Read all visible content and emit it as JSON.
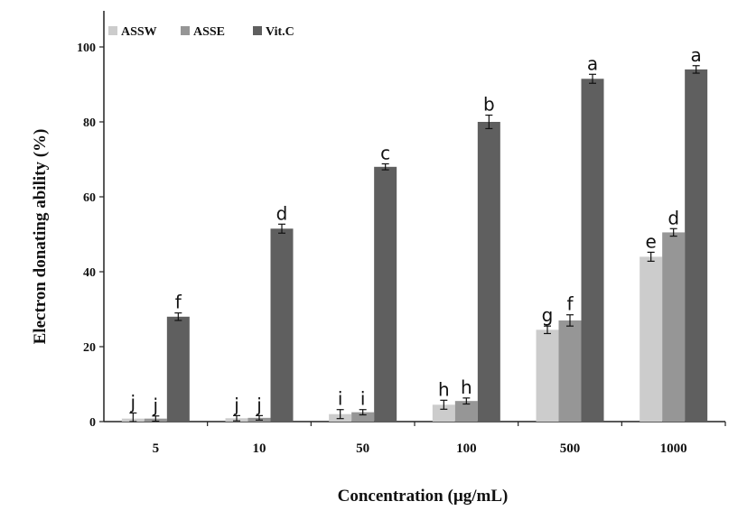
{
  "chart_data": {
    "type": "bar",
    "title": "",
    "xlabel": "Concentration (µg/mL)",
    "ylabel": "Electron donating ability (%)",
    "ylim": [
      0,
      100
    ],
    "yticks": [
      "0",
      "20",
      "40",
      "60",
      "80",
      "100"
    ],
    "categories": [
      "5",
      "10",
      "50",
      "100",
      "500",
      "1000"
    ],
    "legend_position": "top-left",
    "grid": false,
    "series": [
      {
        "name": "ASSW",
        "color": "#cccccc",
        "values": [
          0.8,
          0.9,
          2.0,
          4.5,
          24.5,
          44.0
        ],
        "errors": [
          1.5,
          0.7,
          1.2,
          1.2,
          1.0,
          1.2
        ],
        "labels": [
          "j",
          "j",
          "i",
          "h",
          "g",
          "e"
        ]
      },
      {
        "name": "ASSE",
        "color": "#969696",
        "values": [
          0.8,
          1.0,
          2.5,
          5.5,
          27.0,
          50.5
        ],
        "errors": [
          0.7,
          0.6,
          0.7,
          0.8,
          1.5,
          1.0
        ],
        "labels": [
          "j",
          "j",
          "i",
          "h",
          "f",
          "d"
        ]
      },
      {
        "name": "Vit.C",
        "color": "#5f5f5f",
        "values": [
          28.0,
          51.5,
          68.0,
          80.0,
          91.5,
          94.0
        ],
        "errors": [
          1.0,
          1.2,
          0.8,
          1.8,
          1.2,
          1.0
        ],
        "labels": [
          "f",
          "d",
          "c",
          "b",
          "a",
          "a"
        ]
      }
    ]
  }
}
